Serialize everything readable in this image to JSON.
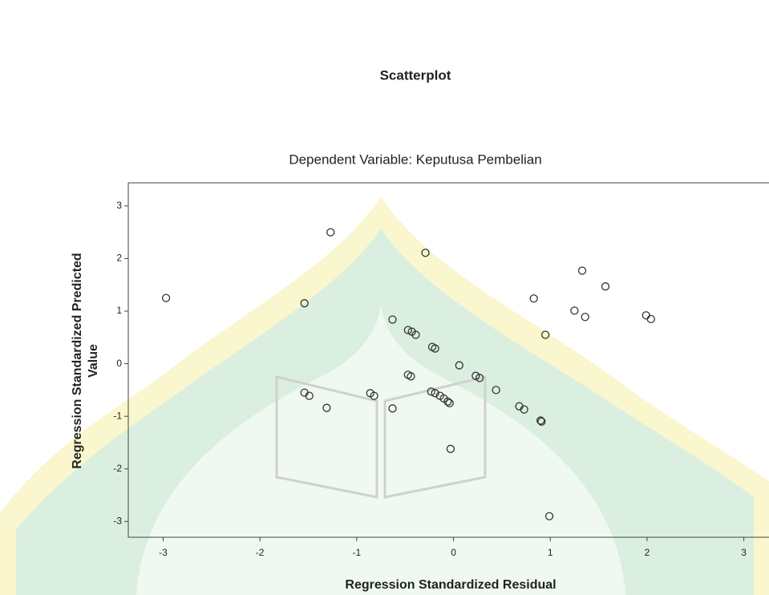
{
  "chart_data": {
    "type": "scatter",
    "title": "Scatterplot",
    "subtitle": "Dependent Variable: Keputusa Pembelian",
    "x_label": "Regression Standardized Residual",
    "y_label": [
      "Regression Standardized Predicted",
      "Value"
    ],
    "x": [
      -2.97,
      -1.54,
      -1.27,
      -0.29,
      -0.63,
      -0.47,
      -0.43,
      -0.39,
      -0.22,
      -0.19,
      0.06,
      0.23,
      0.27,
      0.44,
      0.68,
      0.73,
      0.9,
      0.91,
      0.95,
      0.83,
      1.25,
      1.33,
      1.36,
      1.57,
      1.99,
      2.04,
      0.99,
      -0.03,
      -0.47,
      -0.44,
      -0.23,
      -0.19,
      -0.14,
      -0.1,
      -0.06,
      -0.04,
      -1.54,
      -1.49,
      -1.31,
      -0.86,
      -0.82,
      -0.63
    ],
    "values": [
      1.25,
      1.15,
      2.5,
      2.11,
      0.84,
      0.64,
      0.61,
      0.55,
      0.32,
      0.29,
      -0.03,
      -0.23,
      -0.27,
      -0.5,
      -0.81,
      -0.87,
      -1.08,
      -1.1,
      0.55,
      1.24,
      1.01,
      1.77,
      0.89,
      1.47,
      0.92,
      0.85,
      -2.9,
      -1.62,
      -0.21,
      -0.24,
      -0.53,
      -0.56,
      -0.61,
      -0.66,
      -0.72,
      -0.75,
      -0.55,
      -0.61,
      -0.84,
      -0.56,
      -0.61,
      -0.85
    ],
    "color": "#333333",
    "xlim": [
      -3.36,
      3.26
    ],
    "ylim": [
      -3.3,
      3.44
    ],
    "xticks": [
      -3,
      -2,
      -1,
      0,
      1,
      2,
      3
    ],
    "yticks": [
      -3,
      -2,
      -1,
      0,
      1,
      2,
      3
    ]
  }
}
